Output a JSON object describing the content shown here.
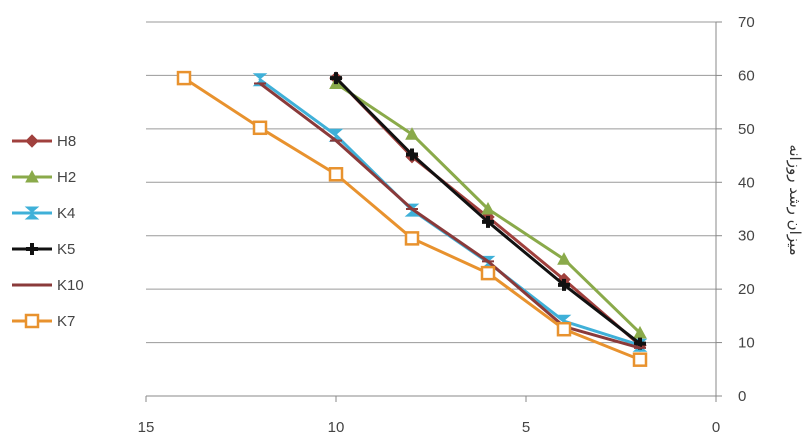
{
  "chart_data": {
    "type": "line",
    "title": "",
    "xlabel": "",
    "ylabel": "میزان رشد روزانه",
    "xlim": [
      15,
      0
    ],
    "x_reversed": true,
    "ylim": [
      0,
      70
    ],
    "x_ticks": [
      "15",
      "10",
      "5",
      "0"
    ],
    "y_ticks": [
      "0",
      "10",
      "20",
      "30",
      "40",
      "50",
      "60",
      "70"
    ],
    "y_axis_side": "right",
    "grid": "horizontal",
    "legend_position": "left",
    "series": [
      {
        "name": "H8",
        "color": "#a0403d",
        "marker": "diamond",
        "x": [
          10,
          8,
          6,
          4,
          2
        ],
        "y": [
          59.5,
          44.8,
          33.5,
          21.8,
          9.5
        ]
      },
      {
        "name": "H2",
        "color": "#8aaa4a",
        "marker": "triangle",
        "x": [
          10,
          8,
          6,
          4,
          2
        ],
        "y": [
          58.5,
          49.0,
          35.0,
          25.6,
          11.8
        ]
      },
      {
        "name": "K4",
        "color": "#3fb0d8",
        "marker": "x",
        "x": [
          12,
          10,
          8,
          6,
          4,
          2
        ],
        "y": [
          59.2,
          48.8,
          34.8,
          25.0,
          14.0,
          9.5
        ]
      },
      {
        "name": "K5",
        "color": "#111111",
        "marker": "plus",
        "x": [
          10,
          8,
          6,
          4,
          2
        ],
        "y": [
          59.5,
          45.2,
          32.6,
          20.8,
          9.8
        ]
      },
      {
        "name": "K10",
        "color": "#8a3a3a",
        "marker": "dash",
        "x": [
          12,
          10,
          8,
          6,
          4,
          2
        ],
        "y": [
          58.5,
          47.8,
          35.0,
          25.2,
          13.0,
          9.0
        ]
      },
      {
        "name": "K7",
        "color": "#e8922e",
        "marker": "square",
        "x": [
          14,
          12,
          10,
          8,
          6,
          4,
          2
        ],
        "y": [
          59.5,
          50.2,
          41.5,
          29.5,
          23.0,
          12.5,
          6.8
        ]
      }
    ]
  }
}
